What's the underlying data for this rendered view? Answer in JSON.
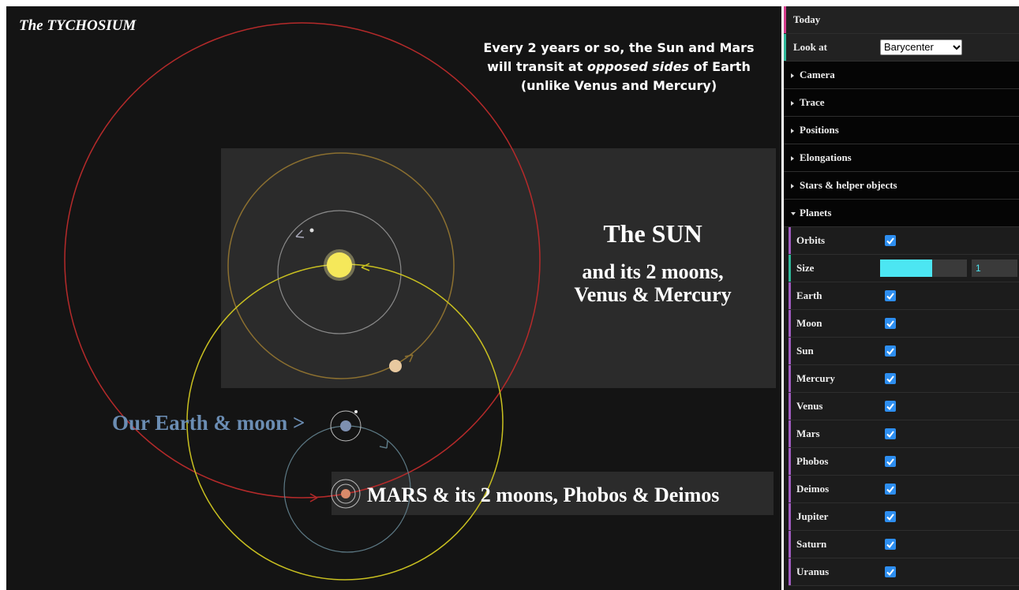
{
  "canvas": {
    "title": "The TYCHOSIUM",
    "annotation": {
      "line1": "Every 2 years or so, the Sun and Mars",
      "line2": [
        "will transit at ",
        "opposed sides",
        " of Earth"
      ],
      "line3": "(unlike Venus and Mercury)"
    },
    "sun_label": {
      "heading": "The SUN",
      "lines": [
        "and its 2 moons,",
        "Venus & Mercury"
      ]
    },
    "earth_label": "Our Earth & moon >",
    "mars_label": "MARS & its 2 moons, Phobos & Deimos"
  },
  "panel": {
    "today": "Today",
    "look_at": {
      "label": "Look at",
      "value": "Barycenter"
    },
    "folders": [
      "Camera",
      "Trace",
      "Positions",
      "Elongations",
      "Stars & helper objects"
    ],
    "planets": {
      "title": "Planets",
      "orbits": {
        "label": "Orbits",
        "checked": true
      },
      "size": {
        "label": "Size",
        "value": 1
      },
      "bodies": [
        {
          "name": "Earth",
          "checked": true
        },
        {
          "name": "Moon",
          "checked": true
        },
        {
          "name": "Sun",
          "checked": true
        },
        {
          "name": "Mercury",
          "checked": true
        },
        {
          "name": "Venus",
          "checked": true
        },
        {
          "name": "Mars",
          "checked": true
        },
        {
          "name": "Phobos",
          "checked": true
        },
        {
          "name": "Deimos",
          "checked": true
        },
        {
          "name": "Jupiter",
          "checked": true
        },
        {
          "name": "Saturn",
          "checked": true
        },
        {
          "name": "Uranus",
          "checked": true
        }
      ]
    }
  }
}
